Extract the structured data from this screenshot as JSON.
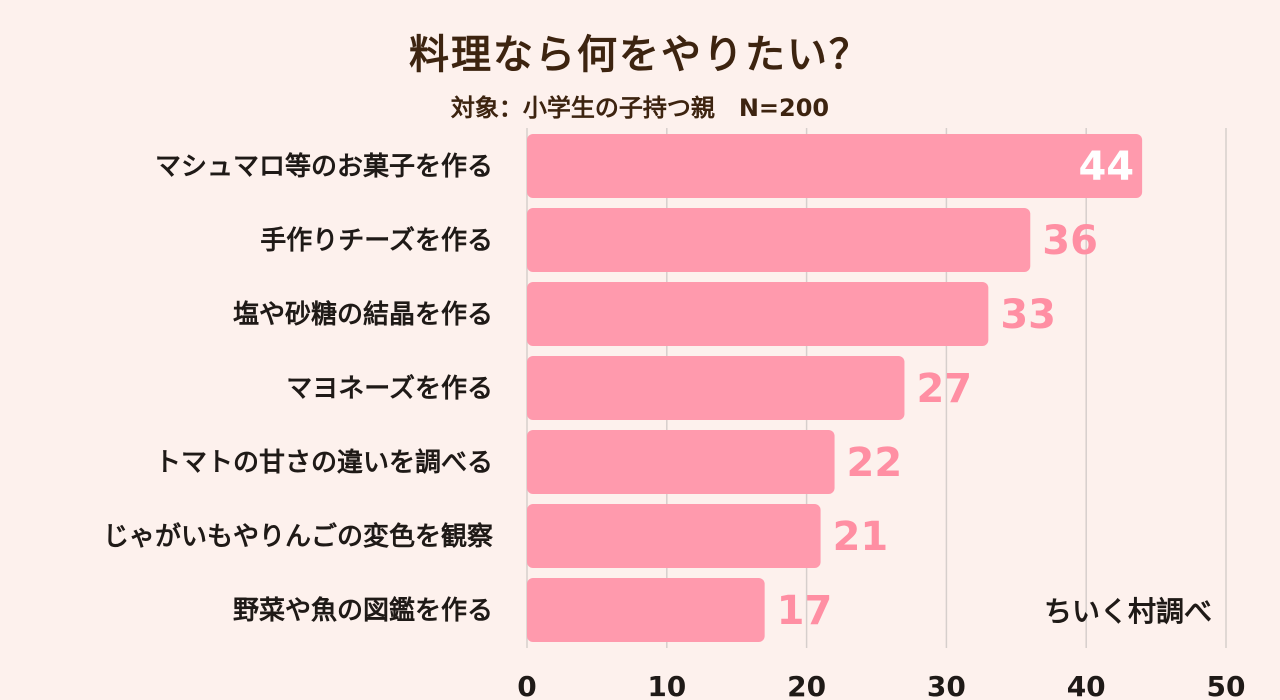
{
  "title": "料理なら何をやりたい？",
  "subtitle": "対象：小学生の子持つ親　N=200",
  "source": "ちいく村調べ",
  "colors": {
    "bar": "#ff9aad",
    "label_outside": "#ff8fa3",
    "label_inside": "#ffffff",
    "grid": "#d6cfcc",
    "background": "#fdf1ed"
  },
  "chart_data": {
    "type": "bar",
    "orientation": "horizontal",
    "title": "料理なら何をやりたい？",
    "subtitle": "対象：小学生の子持つ親　N=200",
    "categories": [
      "マシュマロ等のお菓子を作る",
      "手作りチーズを作る",
      "塩や砂糖の結晶を作る",
      "マヨネーズを作る",
      "トマトの甘さの違いを調べる",
      "じゃがいもやりんごの変色を観察",
      "野菜や魚の図鑑を作る"
    ],
    "values": [
      44,
      36,
      33,
      27,
      22,
      21,
      17
    ],
    "xlim": [
      0,
      50
    ],
    "xticks": [
      0,
      10,
      20,
      30,
      40,
      50
    ],
    "grid": true
  }
}
